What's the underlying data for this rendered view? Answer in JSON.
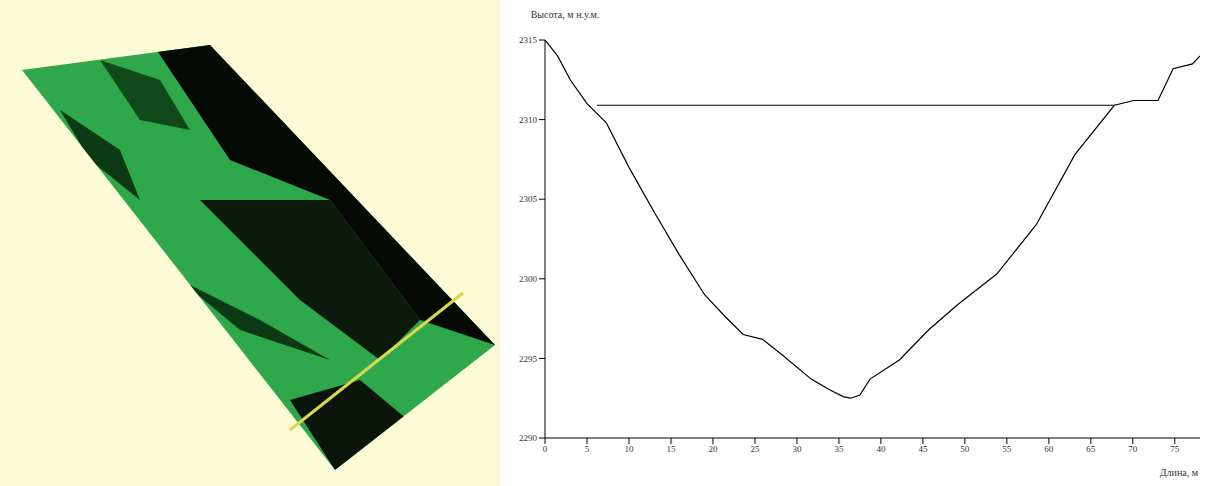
{
  "chart_data": {
    "type": "line",
    "x_label": "Длина, м",
    "y_label": "Высота, м н.у.м.",
    "xlim": [
      0,
      78
    ],
    "xticks": [
      0,
      5,
      10,
      15,
      20,
      25,
      30,
      35,
      40,
      45,
      50,
      55,
      60,
      65,
      70,
      75
    ],
    "ylim": [
      2290,
      2315
    ],
    "yticks": [
      2290,
      2295,
      2300,
      2305,
      2310,
      2315
    ],
    "grid": false,
    "series": [
      {
        "color": "#000000",
        "x": [
          0,
          1.5,
          3,
          5,
          7.3,
          10,
          13.1,
          16,
          19,
          21.5,
          23.6,
          25.9,
          28.3,
          31.7,
          34,
          35.5,
          36.4,
          37.5,
          38.7,
          42.2,
          45.7,
          49.2,
          53.8,
          58.5,
          63.1,
          67.8,
          70.1,
          73,
          74.8,
          77.1,
          78
        ],
        "values": [
          2315,
          2314,
          2312.5,
          2311,
          2309.8,
          2307,
          2304.1,
          2301.5,
          2299,
          2297.6,
          2296.5,
          2296.2,
          2295.2,
          2293.7,
          2293,
          2292.6,
          2292.5,
          2292.7,
          2293.7,
          2294.9,
          2296.8,
          2298.4,
          2300.3,
          2303.4,
          2307.8,
          2310.9,
          2311.2,
          2311.2,
          2313.2,
          2313.5,
          2314
        ]
      },
      {
        "color": "#000000",
        "x": [
          6.2,
          67.8
        ],
        "values": [
          2310.9,
          2310.9
        ]
      }
    ]
  }
}
